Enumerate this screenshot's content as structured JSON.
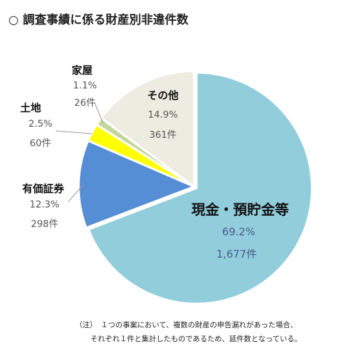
{
  "title": "○ 調査事績に係る財産別非違件数",
  "chart_data": {
    "type": "pie",
    "start_angle_deg": 0,
    "direction": "clockwise",
    "slices": [
      {
        "name": "現金・預貯金等",
        "percent": 69.2,
        "percent_label": "69.2%",
        "count_label": "1,677件",
        "color": "#92cddc"
      },
      {
        "name": "有価証券",
        "percent": 12.3,
        "percent_label": "12.3%",
        "count_label": "298件",
        "color": "#558ed5"
      },
      {
        "name": "土地",
        "percent": 2.5,
        "percent_label": "2.5%",
        "count_label": "60件",
        "color": "#ffff00"
      },
      {
        "name": "家屋",
        "percent": 1.1,
        "percent_label": "1.1%",
        "count_label": "26件",
        "color": "#c4d79b"
      },
      {
        "name": "その他",
        "percent": 14.9,
        "percent_label": "14.9%",
        "count_label": "361件",
        "color": "#eeece1"
      }
    ]
  },
  "note": {
    "line1": "（注）　１つの事案において、複数の財産の申告漏れがあった場合、",
    "line2": "それぞれ１件と集計したものであるため、延件数となっている。"
  }
}
